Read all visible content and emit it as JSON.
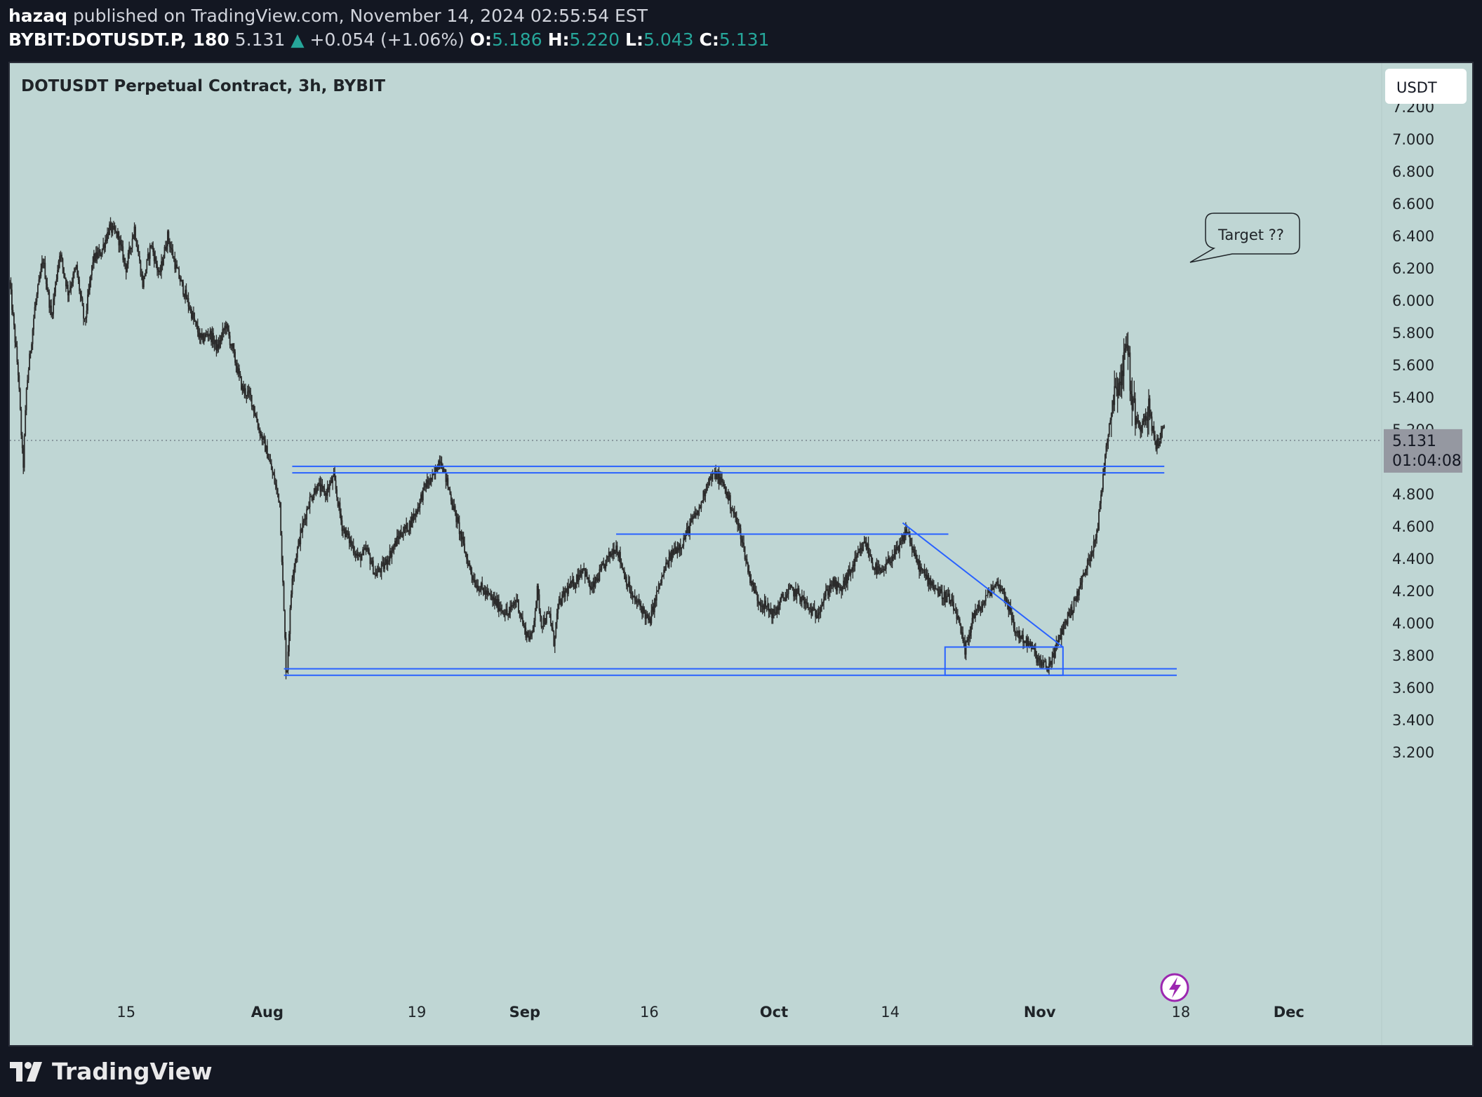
{
  "header": {
    "author": "hazaq",
    "published_text": "published on TradingView.com, November 14, 2024 02:55:54 EST"
  },
  "symbol_bar": {
    "symbol": "BYBIT:DOTUSDT.P, 180",
    "last": "5.131",
    "change": "+0.054 (+1.06%)",
    "o_label": "O:",
    "o": "5.186",
    "h_label": "H:",
    "h": "5.220",
    "l_label": "L:",
    "l": "5.043",
    "c_label": "C:",
    "c": "5.131",
    "up_color": "#26a69a"
  },
  "chart_data": {
    "type": "candlestick",
    "title": "DOTUSDT Perpetual Contract, 3h, BYBIT",
    "currency": "USDT",
    "background": "#bfd6d4",
    "candle_color": "#2b2b2b",
    "drawing_color": "#2962ff",
    "ylim": [
      3.1,
      7.4
    ],
    "y_ticks": [
      "7.200",
      "7.000",
      "6.800",
      "6.600",
      "6.400",
      "6.200",
      "6.000",
      "5.800",
      "5.600",
      "5.400",
      "5.200",
      "5.000",
      "4.800",
      "4.600",
      "4.400",
      "4.200",
      "4.000",
      "3.800",
      "3.600",
      "3.400",
      "3.200"
    ],
    "x_range_days": [
      0,
      165
    ],
    "x_ticks": [
      {
        "label": "15",
        "day": 14,
        "bold": false
      },
      {
        "label": "Aug",
        "day": 31,
        "bold": true
      },
      {
        "label": "19",
        "day": 49,
        "bold": false
      },
      {
        "label": "Sep",
        "day": 62,
        "bold": true
      },
      {
        "label": "16",
        "day": 77,
        "bold": false
      },
      {
        "label": "Oct",
        "day": 92,
        "bold": true
      },
      {
        "label": "14",
        "day": 106,
        "bold": false
      },
      {
        "label": "Nov",
        "day": 124,
        "bold": true
      },
      {
        "label": "18",
        "day": 141,
        "bold": false
      },
      {
        "label": "Dec",
        "day": 154,
        "bold": true
      }
    ],
    "price_path": [
      [
        0,
        6.1
      ],
      [
        1,
        5.55
      ],
      [
        1.6,
        4.95
      ],
      [
        2,
        5.45
      ],
      [
        3,
        5.95
      ],
      [
        4,
        6.25
      ],
      [
        5,
        5.9
      ],
      [
        6,
        6.3
      ],
      [
        7,
        6.05
      ],
      [
        8,
        6.2
      ],
      [
        9,
        5.85
      ],
      [
        10,
        6.25
      ],
      [
        11,
        6.3
      ],
      [
        12,
        6.45
      ],
      [
        13,
        6.4
      ],
      [
        14,
        6.2
      ],
      [
        15,
        6.45
      ],
      [
        16,
        6.1
      ],
      [
        17,
        6.35
      ],
      [
        18,
        6.15
      ],
      [
        19,
        6.4
      ],
      [
        20,
        6.2
      ],
      [
        21,
        6.05
      ],
      [
        22,
        5.9
      ],
      [
        23,
        5.75
      ],
      [
        24,
        5.8
      ],
      [
        25,
        5.7
      ],
      [
        26,
        5.85
      ],
      [
        27,
        5.65
      ],
      [
        28,
        5.45
      ],
      [
        29,
        5.4
      ],
      [
        30,
        5.2
      ],
      [
        31,
        5.05
      ],
      [
        31.5,
        4.95
      ],
      [
        32.5,
        4.75
      ],
      [
        33.3,
        3.65
      ],
      [
        34,
        4.3
      ],
      [
        35,
        4.55
      ],
      [
        36,
        4.75
      ],
      [
        37,
        4.85
      ],
      [
        38,
        4.8
      ],
      [
        39,
        4.9
      ],
      [
        40,
        4.6
      ],
      [
        41,
        4.5
      ],
      [
        42,
        4.4
      ],
      [
        43,
        4.45
      ],
      [
        44,
        4.3
      ],
      [
        45,
        4.35
      ],
      [
        46,
        4.45
      ],
      [
        47,
        4.55
      ],
      [
        48,
        4.6
      ],
      [
        49,
        4.7
      ],
      [
        50,
        4.85
      ],
      [
        51,
        4.9
      ],
      [
        51.8,
        5.03
      ],
      [
        53,
        4.8
      ],
      [
        54,
        4.6
      ],
      [
        55,
        4.4
      ],
      [
        56,
        4.25
      ],
      [
        57,
        4.2
      ],
      [
        58,
        4.15
      ],
      [
        59,
        4.1
      ],
      [
        60,
        4.05
      ],
      [
        61,
        4.15
      ],
      [
        62,
        3.95
      ],
      [
        62.8,
        3.9
      ],
      [
        63.5,
        4.2
      ],
      [
        64,
        4.0
      ],
      [
        65,
        4.05
      ],
      [
        65.5,
        3.88
      ],
      [
        66,
        4.1
      ],
      [
        67,
        4.2
      ],
      [
        68,
        4.25
      ],
      [
        69,
        4.35
      ],
      [
        70,
        4.2
      ],
      [
        71,
        4.3
      ],
      [
        72,
        4.4
      ],
      [
        73,
        4.48
      ],
      [
        74,
        4.3
      ],
      [
        75,
        4.15
      ],
      [
        76,
        4.1
      ],
      [
        77,
        4.0
      ],
      [
        78,
        4.2
      ],
      [
        79,
        4.35
      ],
      [
        80,
        4.45
      ],
      [
        81,
        4.5
      ],
      [
        82,
        4.62
      ],
      [
        83,
        4.7
      ],
      [
        84,
        4.88
      ],
      [
        85,
        4.92
      ],
      [
        86,
        4.85
      ],
      [
        87,
        4.7
      ],
      [
        88,
        4.55
      ],
      [
        89,
        4.3
      ],
      [
        90,
        4.15
      ],
      [
        91,
        4.1
      ],
      [
        92,
        4.05
      ],
      [
        93,
        4.15
      ],
      [
        94,
        4.2
      ],
      [
        95,
        4.18
      ],
      [
        96,
        4.1
      ],
      [
        97,
        4.05
      ],
      [
        98,
        4.15
      ],
      [
        99,
        4.25
      ],
      [
        100,
        4.2
      ],
      [
        101,
        4.3
      ],
      [
        102,
        4.4
      ],
      [
        103,
        4.5
      ],
      [
        104,
        4.35
      ],
      [
        105,
        4.3
      ],
      [
        106,
        4.4
      ],
      [
        107,
        4.45
      ],
      [
        108,
        4.58
      ],
      [
        109,
        4.4
      ],
      [
        110,
        4.3
      ],
      [
        111,
        4.25
      ],
      [
        112,
        4.18
      ],
      [
        113,
        4.15
      ],
      [
        114,
        4.05
      ],
      [
        115,
        3.82
      ],
      [
        116,
        4.05
      ],
      [
        117,
        4.1
      ],
      [
        118,
        4.2
      ],
      [
        119,
        4.25
      ],
      [
        120,
        4.15
      ],
      [
        121,
        3.95
      ],
      [
        122,
        3.9
      ],
      [
        123,
        3.85
      ],
      [
        124,
        3.75
      ],
      [
        125,
        3.72
      ],
      [
        126,
        3.85
      ],
      [
        127,
        4.0
      ],
      [
        128,
        4.1
      ],
      [
        129,
        4.25
      ],
      [
        130,
        4.4
      ],
      [
        131,
        4.6
      ],
      [
        132,
        5.1
      ],
      [
        133,
        5.45
      ],
      [
        134,
        5.55
      ],
      [
        134.5,
        5.8
      ],
      [
        135,
        5.4
      ],
      [
        136,
        5.2
      ],
      [
        137,
        5.35
      ],
      [
        138,
        5.1
      ],
      [
        139,
        5.2
      ]
    ],
    "horizontal_lines": [
      {
        "price": 4.97,
        "day_start": 34,
        "day_end": 139
      },
      {
        "price": 4.93,
        "day_start": 34,
        "day_end": 139
      },
      {
        "price": 4.55,
        "day_start": 73,
        "day_end": 113
      },
      {
        "price": 3.715,
        "day_start": 33,
        "day_end": 140.5
      },
      {
        "price": 3.675,
        "day_start": 33,
        "day_end": 140.5
      }
    ],
    "trend_line": {
      "day_start": 107.5,
      "price_start": 4.62,
      "day_end": 126.8,
      "price_end": 3.85
    },
    "box": {
      "day_start": 112.6,
      "day_end": 126.8,
      "price_top": 3.85,
      "price_bottom": 3.675
    },
    "current_price": {
      "label": "5.131",
      "timer": "01:04:08",
      "price": 5.131
    },
    "annotation": {
      "text": "Target ??"
    }
  },
  "footer": {
    "brand": "TradingView"
  }
}
